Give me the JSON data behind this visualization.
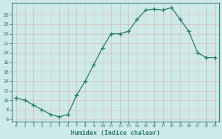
{
  "x": [
    0,
    1,
    2,
    3,
    4,
    5,
    6,
    7,
    8,
    9,
    10,
    11,
    12,
    13,
    14,
    15,
    16,
    17,
    18,
    19,
    20,
    21,
    22,
    23
  ],
  "y": [
    10.5,
    10,
    9,
    8,
    7,
    6.5,
    7,
    11,
    14,
    17.5,
    21,
    24,
    24,
    24.5,
    27,
    29,
    29.2,
    29,
    29.5,
    27,
    24.5,
    20,
    19,
    19
  ],
  "xlabel": "Humidex (Indice chaleur)",
  "xlim": [
    -0.5,
    23.5
  ],
  "ylim": [
    5.5,
    30.5
  ],
  "yticks": [
    6,
    8,
    10,
    12,
    14,
    16,
    18,
    20,
    22,
    24,
    26,
    28
  ],
  "xticks": [
    0,
    1,
    2,
    3,
    4,
    5,
    6,
    7,
    8,
    9,
    10,
    11,
    12,
    13,
    14,
    15,
    16,
    17,
    18,
    19,
    20,
    21,
    22,
    23
  ],
  "line_color": "#2e7d6e",
  "marker_color": "#2e7d6e",
  "bg_color": "#ceeae8",
  "grid_color": "#c0d8d8",
  "tick_label_color": "#2e7d6e",
  "xlabel_color": "#2e7d6e",
  "line_width": 1.0,
  "marker_size": 4.0
}
